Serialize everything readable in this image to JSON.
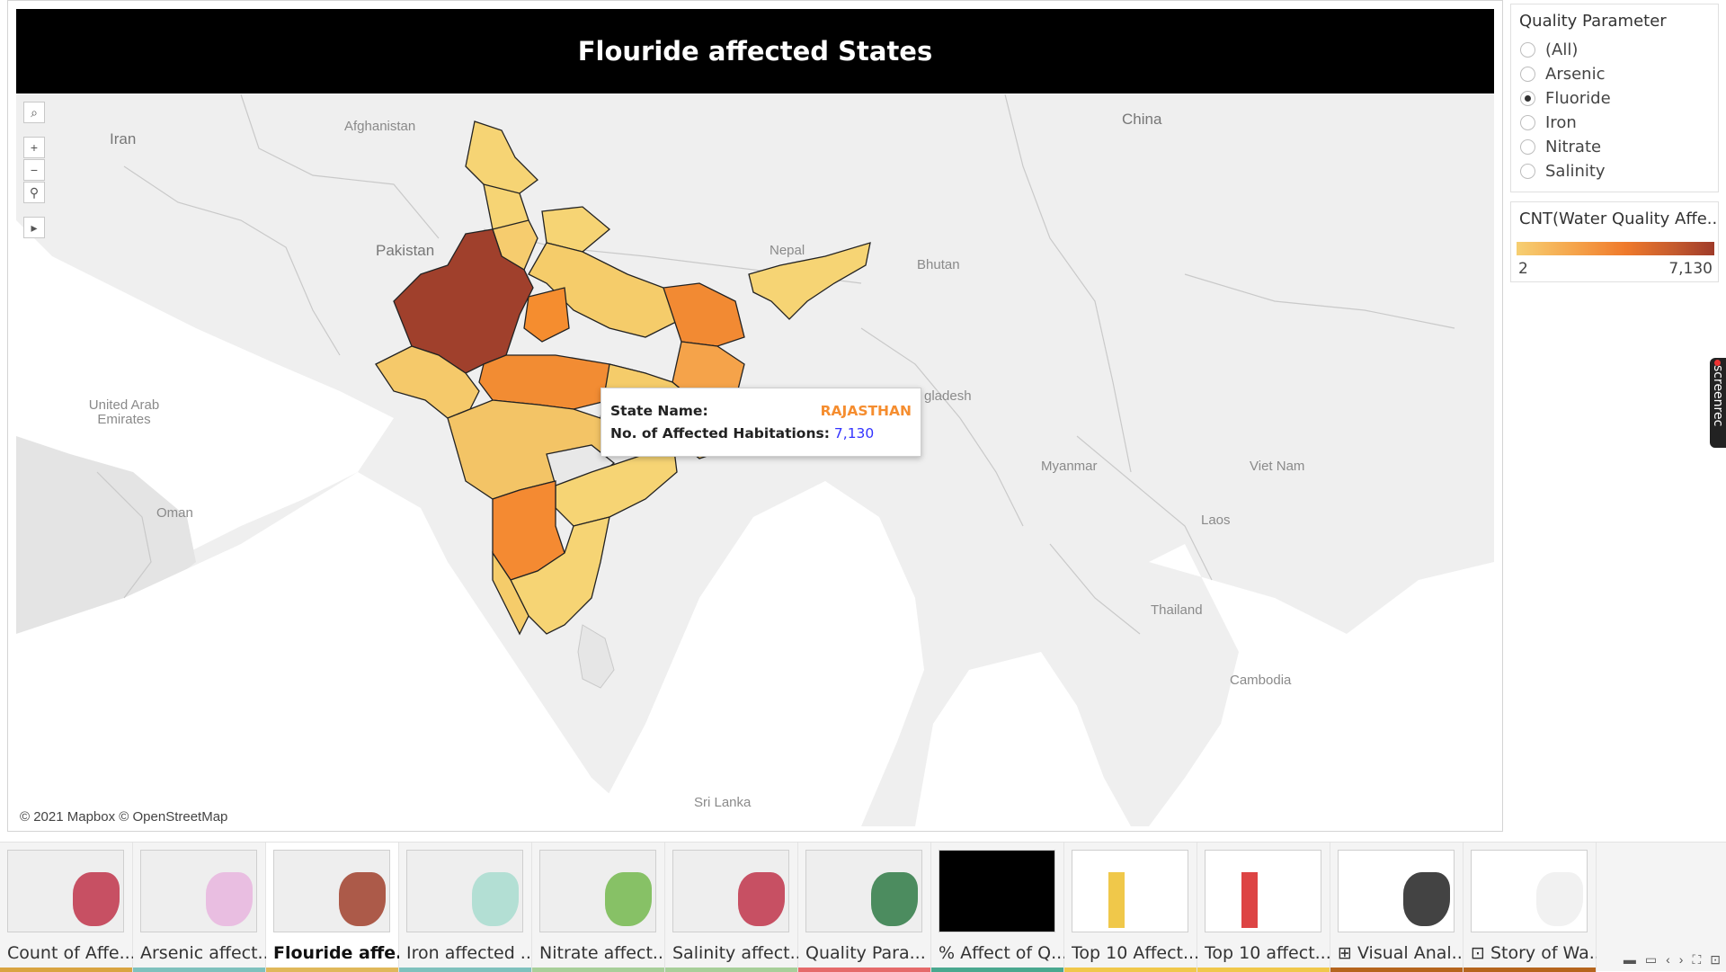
{
  "dashboard": {
    "title": "Flouride affected States",
    "attribution": "© 2021 Mapbox © OpenStreetMap"
  },
  "map": {
    "country_labels": [
      "Iran",
      "Afghanistan",
      "Pakistan",
      "China",
      "Nepal",
      "Bhutan",
      "United Arab Emirates",
      "Oman",
      "Myanmar",
      "Viet Nam",
      "Laos",
      "Thailand",
      "Cambodia",
      "Sri Lanka",
      "gladesh"
    ],
    "toolbar": [
      "search-icon",
      "zoom-in-icon",
      "zoom-out-icon",
      "pin-icon",
      "play-icon"
    ]
  },
  "tooltip": {
    "state_label": "State Name:",
    "state_value": "RAJASTHAN",
    "count_label": "No. of Affected Habitations:",
    "count_value": "7,130"
  },
  "filter": {
    "title": "Quality Parameter",
    "options": [
      "(All)",
      "Arsenic",
      "Fluoride",
      "Iron",
      "Nitrate",
      "Salinity"
    ],
    "selected": "Fluoride"
  },
  "legend": {
    "title": "CNT(Water Quality Affe...",
    "min": "2",
    "max": "7,130",
    "colors": [
      "#f6cf72",
      "#f5a34a",
      "#ef7a2c",
      "#c45a2e",
      "#9f3b2a"
    ]
  },
  "screenrec": {
    "label": "screenrec"
  },
  "story_tabs": [
    {
      "label": "Count of Affe...",
      "color": "#d9a441"
    },
    {
      "label": "Arsenic affect...",
      "color": "#7fc1bd"
    },
    {
      "label": "Flouride affe...",
      "color": "#e0b85a"
    },
    {
      "label": "Iron affected ...",
      "color": "#7fc1bd"
    },
    {
      "label": "Nitrate affect...",
      "color": "#a8cf9a"
    },
    {
      "label": "Salinity affect...",
      "color": "#a8cf9a"
    },
    {
      "label": "Quality Para...",
      "color": "#e56a6a"
    },
    {
      "label": "% Affect of Q...",
      "color": "#4aa88f"
    },
    {
      "label": "Top 10 Affect...",
      "color": "#f0c84a"
    },
    {
      "label": "Top 10 affect...",
      "color": "#f0c84a"
    },
    {
      "label": "⊞ Visual Anal...",
      "color": "#b5651d"
    },
    {
      "label": "⊡ Story of Wa...",
      "color": "#b5651d"
    }
  ],
  "active_tab": 2
}
